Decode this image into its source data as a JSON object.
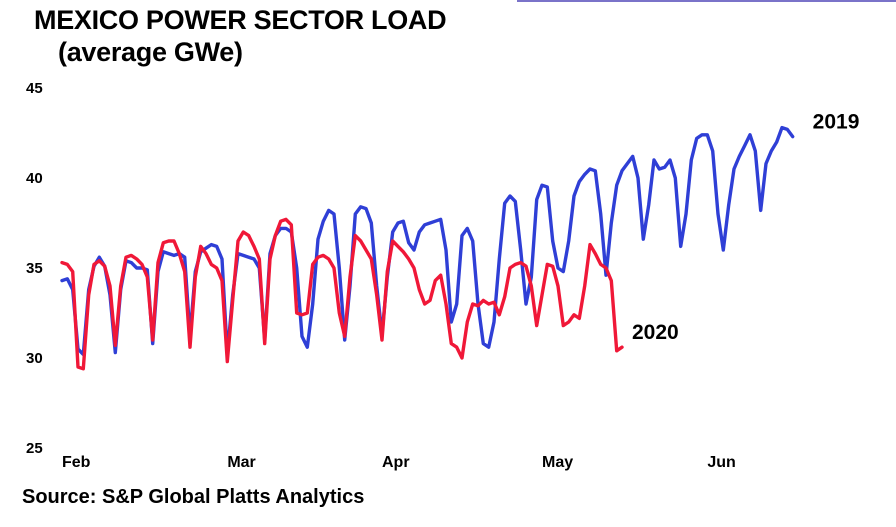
{
  "title_line1": "MEXICO POWER SECTOR LOAD",
  "title_line2": "(average GWe)",
  "source": "Source: S&P Global Platts Analytics",
  "chart_data": {
    "type": "line",
    "title": "MEXICO POWER SECTOR LOAD",
    "subtitle": "(average GWe)",
    "xlabel": "",
    "ylabel": "",
    "ylim": [
      25,
      45
    ],
    "yticks": [
      25,
      30,
      35,
      40,
      45
    ],
    "xlim": [
      0,
      150
    ],
    "month_ticks": [
      {
        "label": "Feb",
        "day": 0
      },
      {
        "label": "Mar",
        "day": 31
      },
      {
        "label": "Apr",
        "day": 60
      },
      {
        "label": "May",
        "day": 90
      },
      {
        "label": "Jun",
        "day": 121
      }
    ],
    "grid": false,
    "legend": "inline labels at line ends",
    "series": [
      {
        "name": "2019",
        "color": "#2f3fd6",
        "points": [
          [
            0,
            34.3
          ],
          [
            1,
            34.4
          ],
          [
            2,
            33.8
          ],
          [
            3,
            30.5
          ],
          [
            4,
            30.2
          ],
          [
            5,
            33.8
          ],
          [
            6,
            35.1
          ],
          [
            7,
            35.6
          ],
          [
            8,
            35.1
          ],
          [
            9,
            33.5
          ],
          [
            10,
            30.3
          ],
          [
            11,
            33.8
          ],
          [
            12,
            35.4
          ],
          [
            13,
            35.3
          ],
          [
            14,
            35.0
          ],
          [
            15,
            35.0
          ],
          [
            16,
            34.9
          ],
          [
            17,
            30.8
          ],
          [
            18,
            34.8
          ],
          [
            19,
            35.9
          ],
          [
            20,
            35.8
          ],
          [
            21,
            35.7
          ],
          [
            22,
            35.8
          ],
          [
            23,
            35.6
          ],
          [
            24,
            31.2
          ],
          [
            25,
            34.8
          ],
          [
            26,
            35.9
          ],
          [
            27,
            36.1
          ],
          [
            28,
            36.3
          ],
          [
            29,
            36.2
          ],
          [
            30,
            35.5
          ],
          [
            31,
            30.2
          ],
          [
            32,
            33.5
          ],
          [
            33,
            35.8
          ],
          [
            34,
            35.7
          ],
          [
            35,
            35.6
          ],
          [
            36,
            35.5
          ],
          [
            37,
            35.0
          ],
          [
            38,
            31.0
          ],
          [
            39,
            35.8
          ],
          [
            40,
            36.8
          ],
          [
            41,
            37.2
          ],
          [
            42,
            37.2
          ],
          [
            43,
            37.0
          ],
          [
            44,
            35.0
          ],
          [
            45,
            31.2
          ],
          [
            46,
            30.6
          ],
          [
            47,
            33.0
          ],
          [
            48,
            36.6
          ],
          [
            49,
            37.6
          ],
          [
            50,
            38.2
          ],
          [
            51,
            38.0
          ],
          [
            52,
            35.0
          ],
          [
            53,
            31.0
          ],
          [
            54,
            34.0
          ],
          [
            55,
            38.0
          ],
          [
            56,
            38.4
          ],
          [
            57,
            38.3
          ],
          [
            58,
            37.5
          ],
          [
            59,
            34.0
          ],
          [
            60,
            31.3
          ],
          [
            61,
            34.5
          ],
          [
            62,
            37.0
          ],
          [
            63,
            37.5
          ],
          [
            64,
            37.6
          ],
          [
            65,
            36.4
          ],
          [
            66,
            36.0
          ],
          [
            67,
            37.0
          ],
          [
            68,
            37.4
          ],
          [
            69,
            37.5
          ],
          [
            70,
            37.6
          ],
          [
            71,
            37.7
          ],
          [
            72,
            36.0
          ],
          [
            73,
            32.0
          ],
          [
            74,
            33.0
          ],
          [
            75,
            36.8
          ],
          [
            76,
            37.2
          ],
          [
            77,
            36.5
          ],
          [
            78,
            33.0
          ],
          [
            79,
            30.8
          ],
          [
            80,
            30.6
          ],
          [
            81,
            32.0
          ],
          [
            82,
            35.5
          ],
          [
            83,
            38.6
          ],
          [
            84,
            39.0
          ],
          [
            85,
            38.7
          ],
          [
            86,
            36.0
          ],
          [
            87,
            33.0
          ],
          [
            88,
            34.5
          ],
          [
            89,
            38.8
          ],
          [
            90,
            39.6
          ],
          [
            91,
            39.5
          ],
          [
            92,
            36.5
          ],
          [
            93,
            35.0
          ],
          [
            94,
            34.8
          ],
          [
            95,
            36.5
          ],
          [
            96,
            39.0
          ],
          [
            97,
            39.8
          ],
          [
            98,
            40.2
          ],
          [
            99,
            40.5
          ],
          [
            100,
            40.4
          ],
          [
            101,
            38.0
          ],
          [
            102,
            34.6
          ],
          [
            103,
            37.5
          ],
          [
            104,
            39.6
          ],
          [
            105,
            40.4
          ],
          [
            106,
            40.8
          ],
          [
            107,
            41.2
          ],
          [
            108,
            40.0
          ],
          [
            109,
            36.6
          ],
          [
            110,
            38.5
          ],
          [
            111,
            41.0
          ],
          [
            112,
            40.5
          ],
          [
            113,
            40.6
          ],
          [
            114,
            41.0
          ],
          [
            115,
            40.0
          ],
          [
            116,
            36.2
          ],
          [
            117,
            38.0
          ],
          [
            118,
            41.0
          ],
          [
            119,
            42.2
          ],
          [
            120,
            42.4
          ],
          [
            121,
            42.4
          ],
          [
            122,
            41.5
          ],
          [
            123,
            38.0
          ],
          [
            124,
            36.0
          ],
          [
            125,
            38.5
          ],
          [
            126,
            40.5
          ],
          [
            127,
            41.2
          ],
          [
            128,
            41.8
          ],
          [
            129,
            42.4
          ],
          [
            130,
            41.5
          ],
          [
            131,
            38.2
          ],
          [
            132,
            40.8
          ],
          [
            133,
            41.5
          ],
          [
            134,
            42.0
          ],
          [
            135,
            42.8
          ],
          [
            136,
            42.7
          ],
          [
            137,
            42.3
          ]
        ]
      },
      {
        "name": "2020",
        "color": "#f01838",
        "points": [
          [
            0,
            35.3
          ],
          [
            1,
            35.2
          ],
          [
            2,
            34.8
          ],
          [
            3,
            29.5
          ],
          [
            4,
            29.4
          ],
          [
            5,
            33.5
          ],
          [
            6,
            35.2
          ],
          [
            7,
            35.4
          ],
          [
            8,
            35.1
          ],
          [
            9,
            34.0
          ],
          [
            10,
            30.7
          ],
          [
            11,
            34.0
          ],
          [
            12,
            35.6
          ],
          [
            13,
            35.7
          ],
          [
            14,
            35.5
          ],
          [
            15,
            35.2
          ],
          [
            16,
            34.5
          ],
          [
            17,
            31.0
          ],
          [
            18,
            35.3
          ],
          [
            19,
            36.4
          ],
          [
            20,
            36.5
          ],
          [
            21,
            36.5
          ],
          [
            22,
            35.8
          ],
          [
            23,
            34.8
          ],
          [
            24,
            30.6
          ],
          [
            25,
            34.5
          ],
          [
            26,
            36.2
          ],
          [
            27,
            35.8
          ],
          [
            28,
            35.2
          ],
          [
            29,
            35.0
          ],
          [
            30,
            34.3
          ],
          [
            31,
            29.8
          ],
          [
            32,
            33.2
          ],
          [
            33,
            36.5
          ],
          [
            34,
            37.0
          ],
          [
            35,
            36.8
          ],
          [
            36,
            36.2
          ],
          [
            37,
            35.5
          ],
          [
            38,
            30.8
          ],
          [
            39,
            35.5
          ],
          [
            40,
            36.8
          ],
          [
            41,
            37.6
          ],
          [
            42,
            37.7
          ],
          [
            43,
            37.4
          ],
          [
            44,
            32.5
          ],
          [
            45,
            32.4
          ],
          [
            46,
            32.5
          ],
          [
            47,
            35.2
          ],
          [
            48,
            35.6
          ],
          [
            49,
            35.7
          ],
          [
            50,
            35.5
          ],
          [
            51,
            35.0
          ],
          [
            52,
            32.5
          ],
          [
            53,
            31.2
          ],
          [
            54,
            34.5
          ],
          [
            55,
            36.8
          ],
          [
            56,
            36.5
          ],
          [
            57,
            36.0
          ],
          [
            58,
            35.5
          ],
          [
            59,
            33.5
          ],
          [
            60,
            31.0
          ],
          [
            61,
            34.8
          ],
          [
            62,
            36.5
          ],
          [
            63,
            36.2
          ],
          [
            64,
            35.9
          ],
          [
            65,
            35.5
          ],
          [
            66,
            35.0
          ],
          [
            67,
            33.8
          ],
          [
            68,
            33.0
          ],
          [
            69,
            33.2
          ],
          [
            70,
            34.3
          ],
          [
            71,
            34.6
          ],
          [
            72,
            33.0
          ],
          [
            73,
            30.8
          ],
          [
            74,
            30.6
          ],
          [
            75,
            30.0
          ],
          [
            76,
            32.0
          ],
          [
            77,
            33.0
          ],
          [
            78,
            32.9
          ],
          [
            79,
            33.2
          ],
          [
            80,
            33.0
          ],
          [
            81,
            33.1
          ],
          [
            82,
            32.4
          ],
          [
            83,
            33.4
          ],
          [
            84,
            35.0
          ],
          [
            85,
            35.2
          ],
          [
            86,
            35.3
          ],
          [
            87,
            35.1
          ],
          [
            88,
            34.0
          ],
          [
            89,
            31.8
          ],
          [
            90,
            33.5
          ],
          [
            91,
            35.2
          ],
          [
            92,
            35.1
          ],
          [
            93,
            34.0
          ],
          [
            94,
            31.8
          ],
          [
            95,
            32.0
          ],
          [
            96,
            32.4
          ],
          [
            97,
            32.2
          ],
          [
            98,
            34.0
          ],
          [
            99,
            36.3
          ],
          [
            100,
            35.8
          ],
          [
            101,
            35.2
          ],
          [
            102,
            35.0
          ],
          [
            103,
            34.3
          ],
          [
            104,
            30.4
          ],
          [
            105,
            30.6
          ]
        ]
      }
    ]
  }
}
